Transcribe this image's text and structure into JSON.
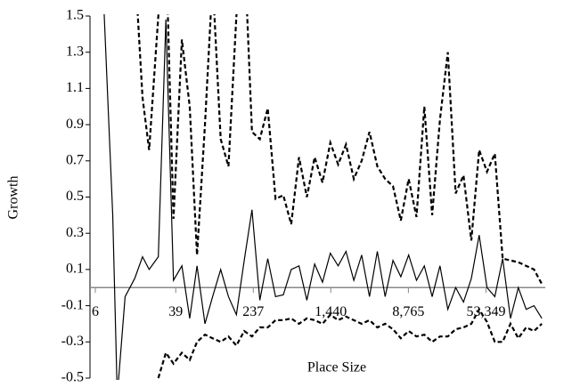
{
  "chart_data": {
    "type": "line",
    "x_label": "Place Size",
    "y_label": "Growth",
    "xscale": "log",
    "xlim": [
      5.3,
      212000
    ],
    "ylim": [
      -0.5,
      1.5
    ],
    "xticks": [
      6,
      39,
      237,
      {
        "value": 1440,
        "label": "1,440"
      },
      {
        "value": 8765,
        "label": "8,765"
      },
      {
        "value": 53349,
        "label": "53,349"
      }
    ],
    "yticks": [
      -0.5,
      -0.3,
      -0.1,
      0.1,
      0.3,
      0.5,
      0.7,
      0.9,
      1.1,
      1.3,
      1.5
    ],
    "grid": false,
    "x": [
      6,
      7,
      9,
      10,
      12,
      15,
      18,
      21,
      26,
      31,
      37,
      45,
      54,
      64,
      77,
      92,
      111,
      133,
      160,
      192,
      230,
      276,
      332,
      398,
      477,
      573,
      687,
      825,
      989,
      1187,
      1424,
      1709,
      2051,
      2461,
      2954,
      3544,
      4253,
      5104,
      6124,
      7349,
      8819,
      10583,
      12699,
      15239,
      18287,
      21945,
      26334,
      31601,
      37921,
      45505,
      54606,
      65527,
      78633,
      94359,
      113231,
      135877,
      163052,
      195663
    ],
    "series": [
      {
        "color": "#000000",
        "dash": false,
        "values": [
          null,
          1.8,
          0.4,
          -0.6,
          -0.05,
          0.05,
          0.17,
          0.1,
          0.17,
          1.48,
          0.04,
          0.12,
          -0.17,
          0.12,
          -0.2,
          -0.05,
          0.1,
          -0.05,
          -0.15,
          0.15,
          0.43,
          -0.07,
          0.16,
          -0.05,
          -0.04,
          0.1,
          0.12,
          -0.07,
          0.13,
          0.03,
          0.19,
          0.12,
          0.2,
          0.04,
          0.18,
          -0.05,
          0.2,
          -0.05,
          0.15,
          0.06,
          0.18,
          0.04,
          0.12,
          -0.05,
          0.12,
          -0.12,
          0.0,
          -0.08,
          0.05,
          0.29,
          0.0,
          -0.05,
          0.16,
          -0.17,
          0.0,
          -0.12,
          -0.1,
          -0.17
        ]
      },
      {
        "color": "#000000",
        "dash": true,
        "values": [
          null,
          null,
          null,
          null,
          null,
          1.8,
          1.05,
          0.76,
          1.5,
          1.9,
          0.38,
          1.37,
          1.0,
          0.18,
          0.9,
          1.7,
          0.82,
          0.67,
          1.5,
          1.9,
          0.86,
          0.82,
          0.99,
          0.49,
          0.51,
          0.35,
          0.72,
          0.5,
          0.72,
          0.58,
          0.8,
          0.68,
          0.79,
          0.6,
          0.7,
          0.86,
          0.67,
          0.6,
          0.56,
          0.37,
          0.6,
          0.39,
          1.0,
          0.4,
          0.93,
          1.3,
          0.52,
          0.62,
          0.26,
          0.76,
          0.64,
          0.74,
          0.16,
          0.15,
          0.14,
          0.12,
          0.1,
          0.02
        ]
      },
      {
        "color": "#000000",
        "dash": true,
        "values": [
          null,
          null,
          null,
          null,
          null,
          null,
          null,
          null,
          -0.5,
          -0.36,
          -0.42,
          -0.36,
          -0.4,
          -0.3,
          -0.26,
          -0.28,
          -0.3,
          -0.27,
          -0.32,
          -0.24,
          -0.27,
          -0.22,
          -0.22,
          -0.18,
          -0.18,
          -0.17,
          -0.2,
          -0.17,
          -0.18,
          -0.2,
          -0.15,
          -0.18,
          -0.16,
          -0.18,
          -0.2,
          -0.18,
          -0.22,
          -0.2,
          -0.23,
          -0.28,
          -0.24,
          -0.27,
          -0.26,
          -0.3,
          -0.27,
          -0.27,
          -0.23,
          -0.22,
          -0.2,
          -0.12,
          -0.19,
          -0.3,
          -0.3,
          -0.2,
          -0.28,
          -0.22,
          -0.24,
          -0.2
        ]
      }
    ]
  }
}
